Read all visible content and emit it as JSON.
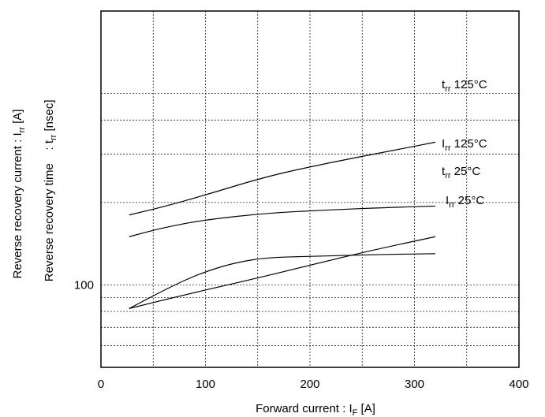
{
  "chart_data": {
    "type": "line",
    "x_label": "Forward current : I",
    "x_label_sub": "F",
    "x_label_unit": " [A]",
    "y_label_1": "Reverse recovery current : I",
    "y_label_1_sub": "rr",
    "y_label_1_unit": " [A]",
    "y_label_2": "Reverse recovery time    : t",
    "y_label_2_sub": "rr",
    "y_label_2_unit": " [nsec]",
    "xlim": [
      0,
      400
    ],
    "ylim": [
      50,
      1000
    ],
    "y_scale": "log",
    "x_ticks": [
      "0",
      "100",
      "200",
      "300",
      "400"
    ],
    "y_tick_labels": [
      {
        "value": 100,
        "text": "100"
      }
    ],
    "grid": true,
    "series": [
      {
        "name_main": "t",
        "name_sub": "rr",
        "name_rest": " 125°C",
        "x": [
          27,
          60,
          100,
          160,
          220,
          280,
          320
        ],
        "y": [
          180,
          193,
          213,
          250,
          280,
          310,
          332
        ]
      },
      {
        "name_main": "I",
        "name_sub": "rr",
        "name_rest": " 125°C",
        "x": [
          27,
          60,
          100,
          160,
          220,
          280,
          320
        ],
        "y": [
          150,
          162,
          173,
          183,
          188,
          192,
          194
        ]
      },
      {
        "name_main": "t",
        "name_sub": "rr",
        "name_rest": " 25°C",
        "x": [
          27,
          80,
          150,
          200,
          260,
          320
        ],
        "y": [
          82,
          92,
          106,
          118,
          134,
          150
        ]
      },
      {
        "name_main": "I",
        "name_sub": "rr",
        "name_rest": " 25°C",
        "x": [
          27,
          70,
          100,
          130,
          160,
          200,
          260,
          320
        ],
        "y": [
          82,
          100,
          112,
          121,
          126,
          127,
          129,
          130
        ]
      }
    ]
  }
}
